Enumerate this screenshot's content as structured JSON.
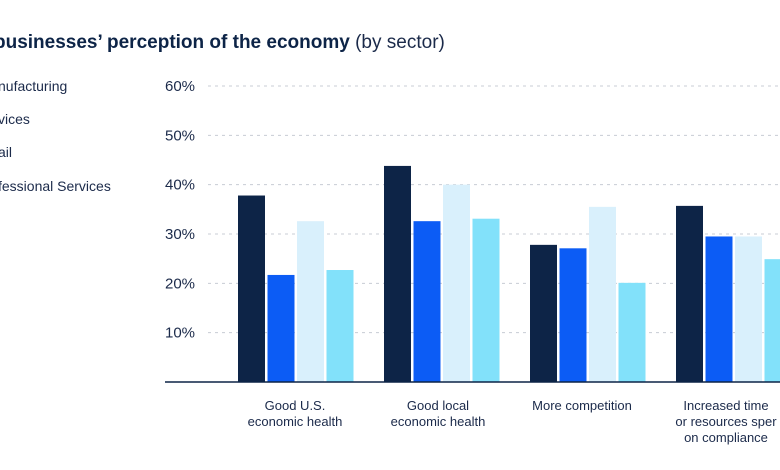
{
  "title": {
    "bold": "businesses’ perception of the economy",
    "normal": " (by sector)"
  },
  "legend": [
    "nufacturing",
    "vices",
    "ail",
    "fessional Services"
  ],
  "colors": [
    "#0d2447",
    "#0c5cf5",
    "#d9f0fc",
    "#82e1fa"
  ],
  "chart_data": {
    "type": "bar",
    "title": "businesses’ perception of the economy (by sector)",
    "xlabel": "",
    "ylabel": "",
    "ylim": [
      0,
      60
    ],
    "y_ticks": [
      "10%",
      "20%",
      "30%",
      "40%",
      "50%",
      "60%"
    ],
    "grid": true,
    "legend_position": "top-left",
    "categories": [
      [
        "Good U.S.",
        "economic health"
      ],
      [
        "Good local",
        "economic health"
      ],
      [
        "More competition"
      ],
      [
        "Increased time",
        "or resources sper",
        "on compliance"
      ]
    ],
    "series": [
      {
        "name": "nufacturing",
        "values": [
          37.8,
          43.8,
          27.8,
          35.7
        ]
      },
      {
        "name": "vices",
        "values": [
          21.7,
          32.6,
          27.1,
          29.5
        ]
      },
      {
        "name": "ail",
        "values": [
          32.6,
          40.0,
          35.5,
          29.5
        ]
      },
      {
        "name": "fessional Services",
        "values": [
          22.7,
          33.1,
          20.1,
          24.9
        ]
      }
    ]
  }
}
